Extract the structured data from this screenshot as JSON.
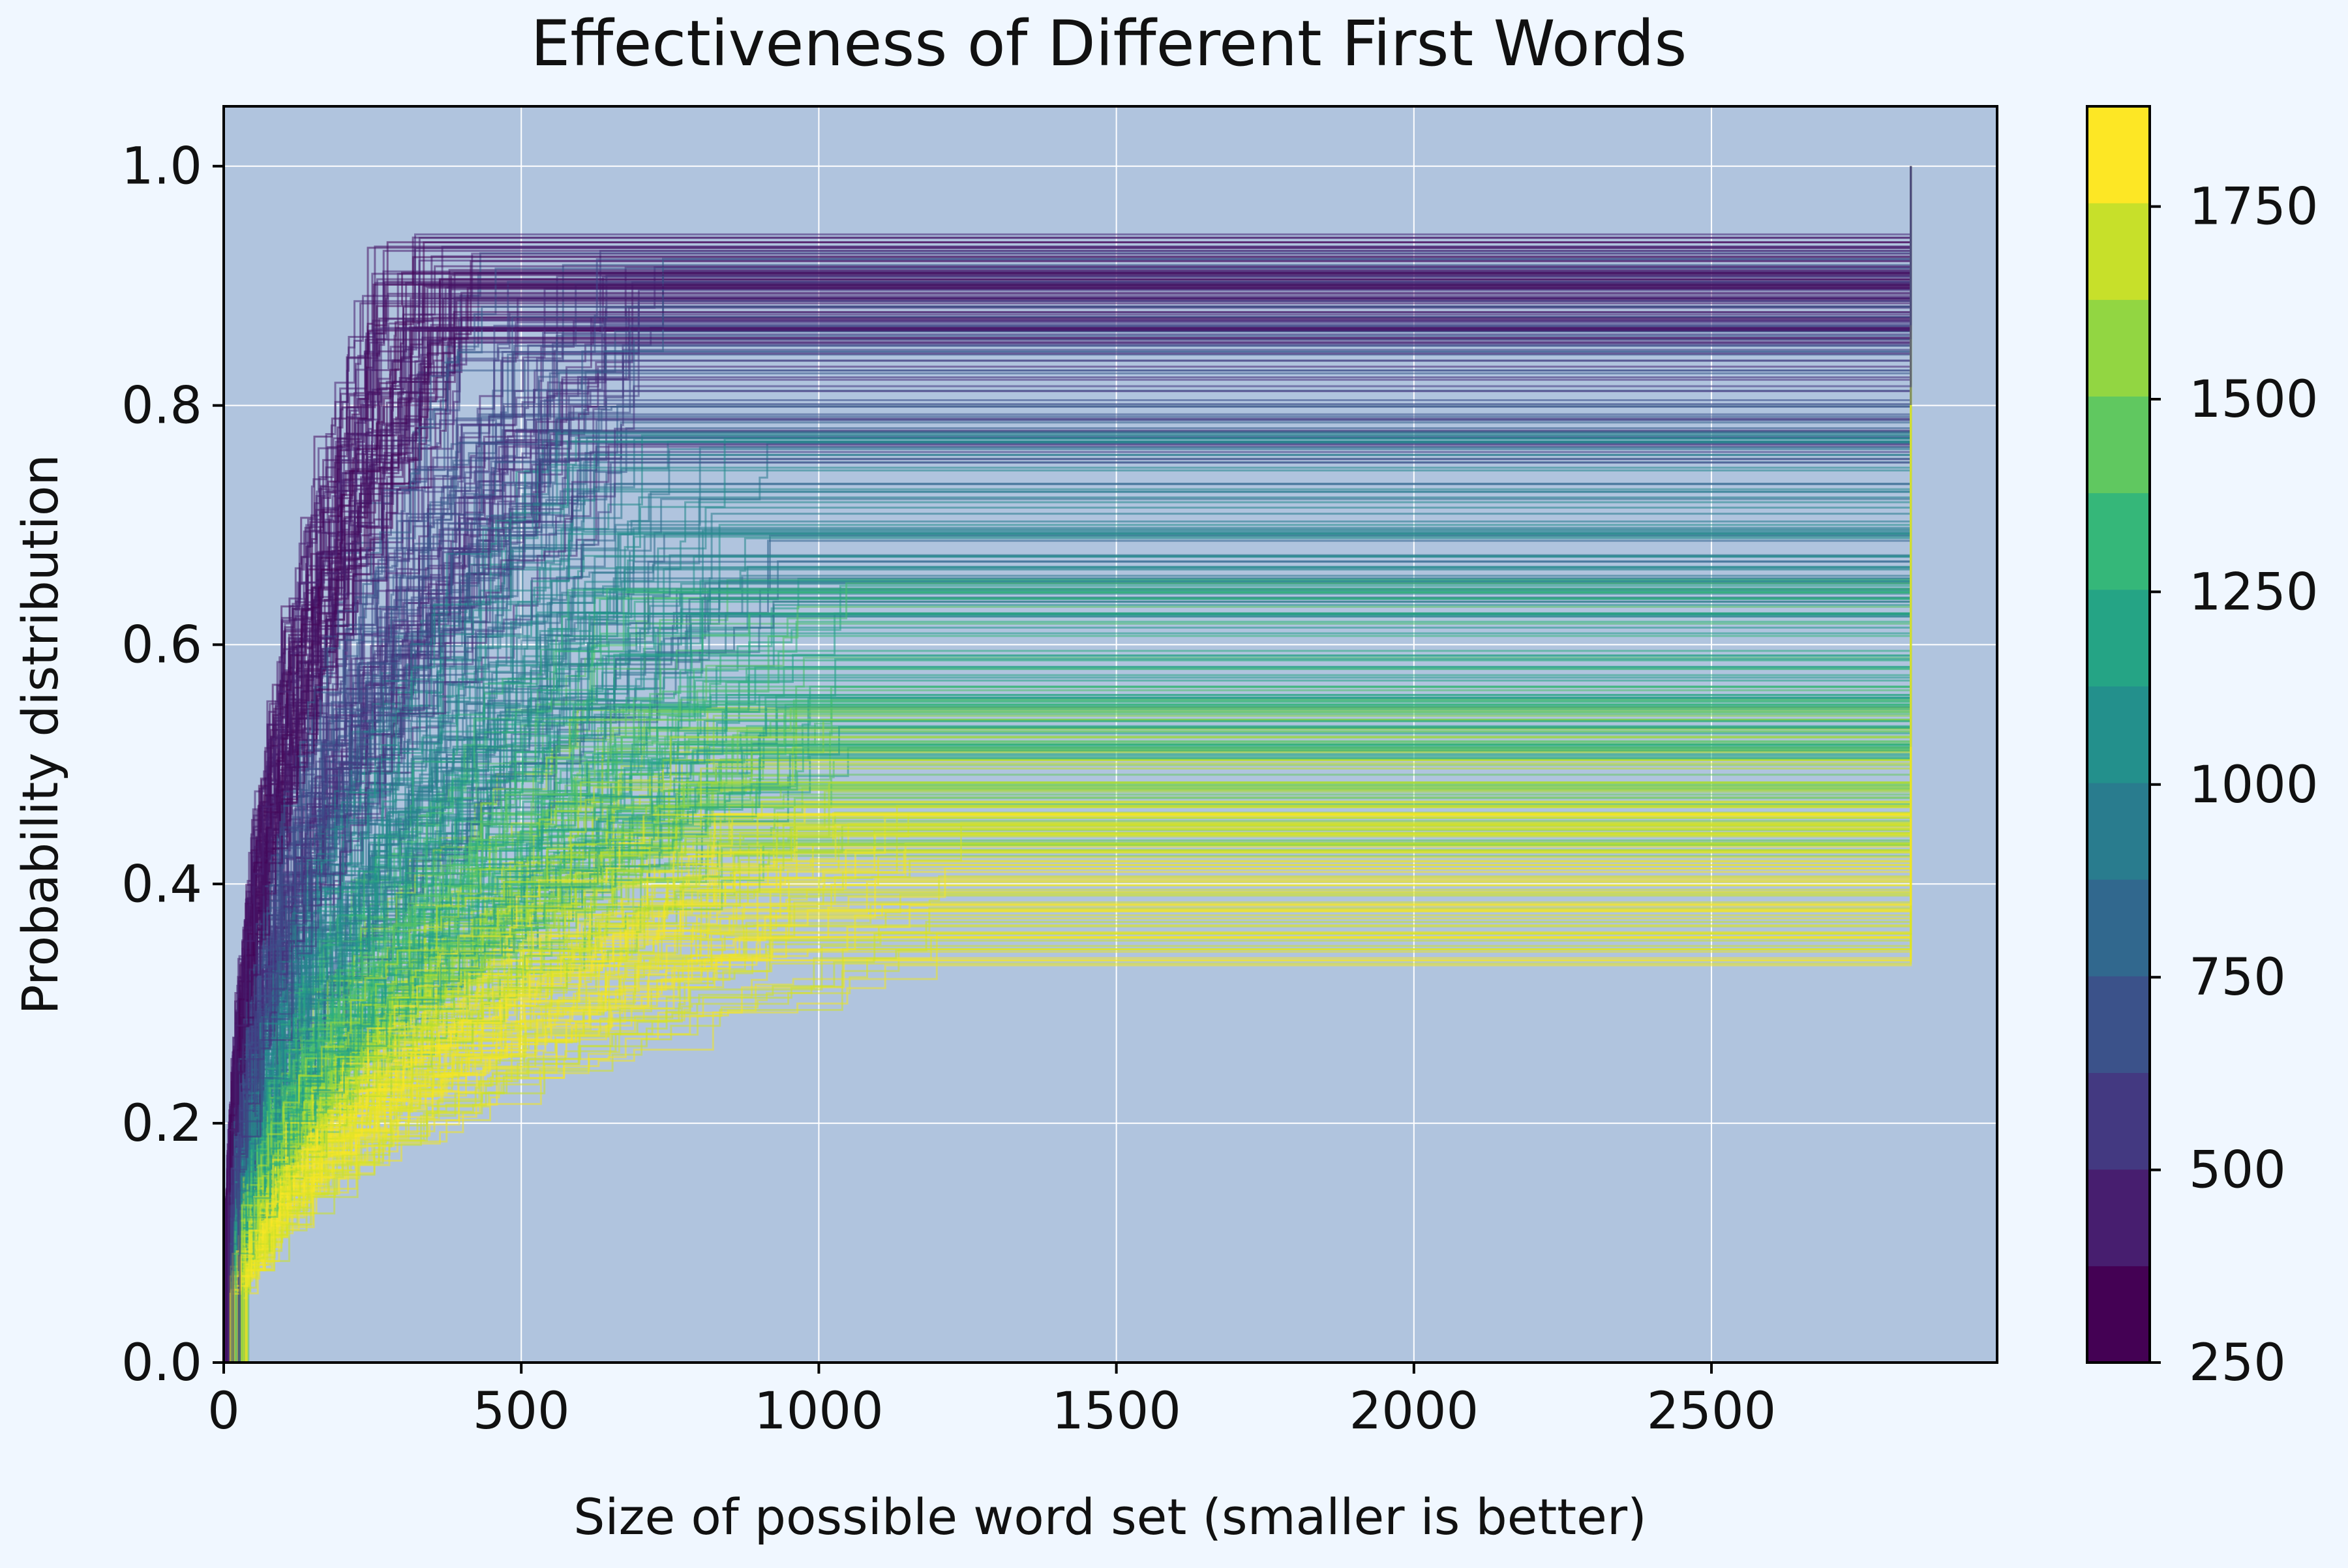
{
  "chart_data": {
    "type": "line",
    "title": "Effectiveness of Different First Words",
    "xlabel": "Size of possible word set (smaller is better)",
    "ylabel": "Probability distribution",
    "xlim": [
      0,
      2980
    ],
    "ylim": [
      0,
      1.05
    ],
    "xticks": [
      0,
      500,
      1000,
      1500,
      2000,
      2500
    ],
    "yticks": [
      0.0,
      0.2,
      0.4,
      0.6,
      0.8,
      1.0
    ],
    "xtick_labels": [
      "0",
      "500",
      "1000",
      "1500",
      "2000",
      "2500"
    ],
    "ytick_labels": [
      "0.0",
      "0.2",
      "0.4",
      "0.6",
      "0.8",
      "1.0"
    ],
    "grid": true,
    "step_curves": "cumulative probability distribution of remaining word-set size, one stepped curve per first word (~2300 curves), drawn semi-transparent",
    "x_end": 2835,
    "bands": [
      {
        "max_x": 420,
        "plateau": [
          0.85,
          0.945
        ],
        "color_value": [
          250,
          420
        ]
      },
      {
        "max_x": 740,
        "plateau": [
          0.75,
          0.93
        ],
        "color_value": [
          400,
          750
        ]
      },
      {
        "max_x": 950,
        "plateau": [
          0.62,
          0.78
        ],
        "color_value": [
          750,
          1100
        ]
      },
      {
        "max_x": 1050,
        "plateau": [
          0.5,
          0.66
        ],
        "color_value": [
          1100,
          1450
        ]
      },
      {
        "max_x": 1050,
        "plateau": [
          0.42,
          0.55
        ],
        "color_value": [
          1450,
          1750
        ]
      },
      {
        "max_x": 1250,
        "plateau": [
          0.33,
          0.47
        ],
        "color_value": [
          1750,
          1880
        ]
      }
    ],
    "colorbar": {
      "colormap": "viridis",
      "range": [
        250,
        1880
      ],
      "levels": 13,
      "ticks": [
        250,
        500,
        750,
        1000,
        1250,
        1500,
        1750
      ],
      "tick_labels": [
        "250",
        "500",
        "750",
        "1000",
        "1250",
        "1500",
        "1750"
      ]
    },
    "colors": {
      "page_background": "#f0f7ff",
      "axes_background": "#b0c4de",
      "grid": "#ffffff"
    }
  }
}
